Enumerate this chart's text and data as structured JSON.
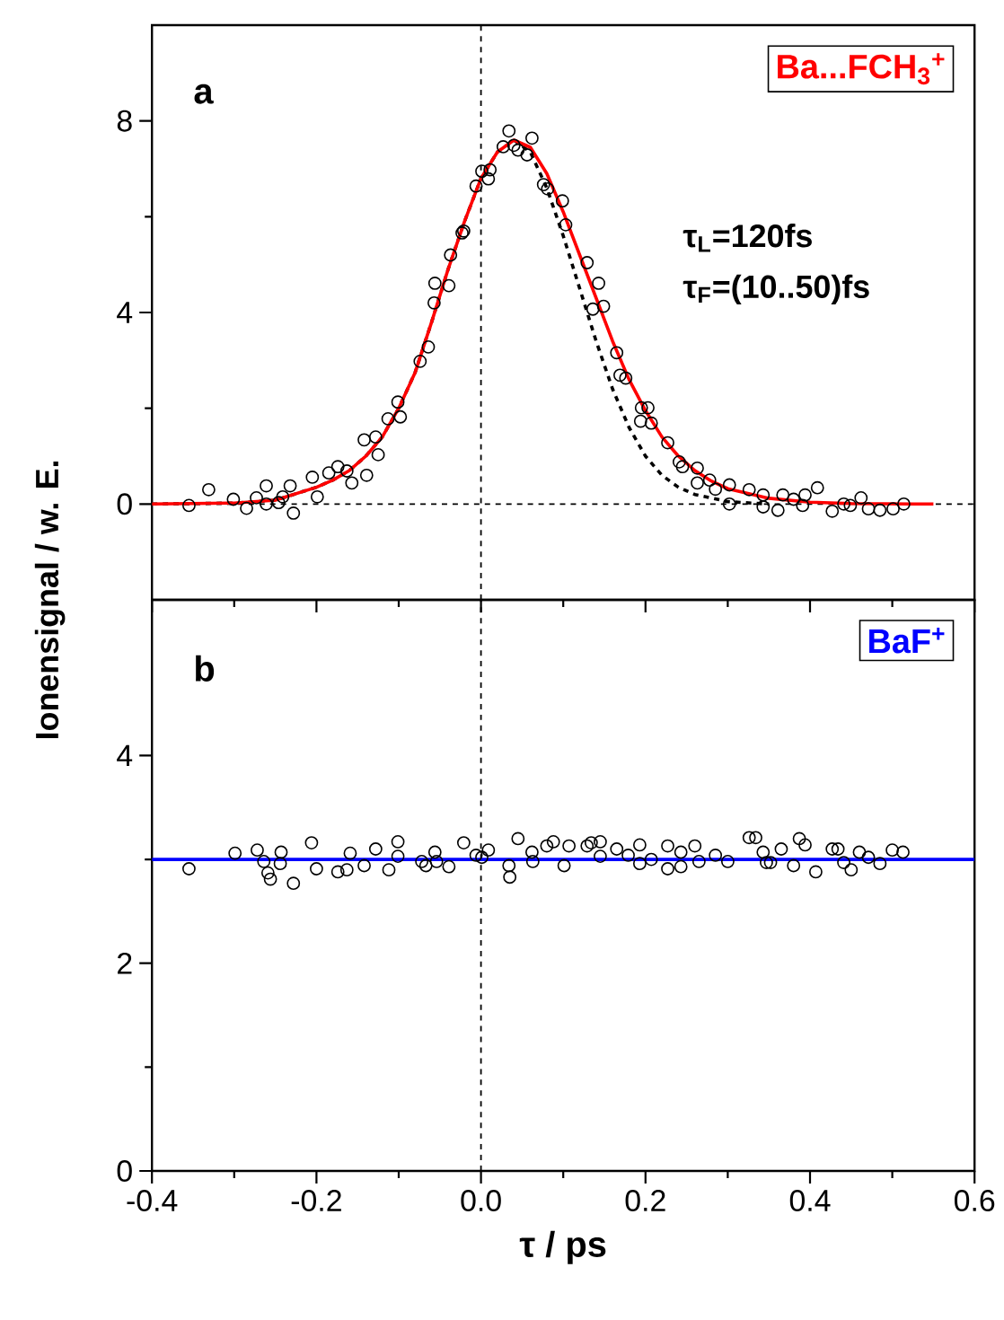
{
  "chart_data": [
    {
      "type": "scatter",
      "xlim": [
        -0.4,
        0.6
      ],
      "xticks": [
        -0.4,
        -0.2,
        0,
        0.2,
        0.4,
        0.6
      ],
      "ylim": [
        -2,
        10
      ],
      "yticks": [
        0,
        4,
        8
      ],
      "tick_labels": "y",
      "annotations": [
        "**a**",
        "**τ$_{L}$=120fs**",
        "**τ$_{F}$=(10..50)fs**"
      ],
      "ref_lines": [
        {
          "axis": "x",
          "value": 0,
          "color": "#000000",
          "line_style": "dashed"
        },
        {
          "axis": "y",
          "value": 0,
          "color": "#000000",
          "line_style": "dashed"
        }
      ],
      "series": [
        {
          "marker": "circle",
          "color": "#000000",
          "x": [
            -0.355,
            -0.331,
            -0.301,
            -0.285,
            -0.273,
            -0.261,
            -0.261,
            -0.246,
            -0.241,
            -0.232,
            -0.228,
            -0.205,
            -0.199,
            -0.185,
            -0.174,
            -0.163,
            -0.157,
            -0.142,
            -0.139,
            -0.128,
            -0.125,
            -0.113,
            -0.101,
            -0.098,
            -0.074,
            -0.064,
            -0.057,
            -0.056,
            -0.039,
            -0.037,
            -0.023,
            -0.021,
            -0.006,
            0.001,
            0.009,
            0.011,
            0.027,
            0.034,
            0.04,
            0.045,
            0.056,
            0.062,
            0.076,
            0.081,
            0.099,
            0.103,
            0.129,
            0.136,
            0.143,
            0.149,
            0.165,
            0.169,
            0.176,
            0.194,
            0.195,
            0.203,
            0.207,
            0.227,
            0.241,
            0.245,
            0.263,
            0.263,
            0.278,
            0.285,
            0.302,
            0.302,
            0.326,
            0.343,
            0.343,
            0.361,
            0.367,
            0.38,
            0.391,
            0.394,
            0.409,
            0.427,
            0.441,
            0.449,
            0.462,
            0.471,
            0.485,
            0.501,
            0.514
          ],
          "values": [
            -0.03,
            0.3,
            0.1,
            -0.09,
            0.13,
            0.38,
            0.0,
            0.03,
            0.15,
            0.38,
            -0.19,
            0.56,
            0.15,
            0.65,
            0.78,
            0.69,
            0.44,
            1.34,
            0.6,
            1.4,
            1.03,
            1.78,
            2.13,
            1.82,
            2.98,
            3.28,
            4.2,
            4.61,
            4.56,
            5.2,
            5.66,
            5.7,
            6.64,
            6.95,
            6.79,
            6.98,
            7.46,
            7.79,
            7.49,
            7.39,
            7.29,
            7.64,
            6.67,
            6.58,
            6.33,
            5.83,
            5.04,
            4.07,
            4.61,
            4.13,
            3.16,
            2.69,
            2.63,
            1.73,
            2.01,
            2.01,
            1.69,
            1.28,
            0.88,
            0.78,
            0.75,
            0.44,
            0.5,
            0.31,
            0.4,
            0.0,
            0.3,
            0.19,
            -0.06,
            -0.13,
            0.19,
            0.1,
            -0.03,
            0.19,
            0.34,
            -0.15,
            0.0,
            -0.03,
            0.13,
            -0.1,
            -0.13,
            -0.1,
            0.0
          ]
        },
        {
          "type": "line",
          "line_style": "dashed",
          "color": "#000000",
          "x": [
            -0.4,
            -0.3,
            -0.25,
            -0.2,
            -0.18,
            -0.16,
            -0.14,
            -0.12,
            -0.1,
            -0.08,
            -0.06,
            -0.04,
            -0.02,
            0.0,
            0.02,
            0.04,
            0.06,
            0.08,
            0.1,
            0.12,
            0.14,
            0.16,
            0.18,
            0.2,
            0.22,
            0.24,
            0.26,
            0.3,
            0.35
          ],
          "values": [
            0,
            0.02,
            0.08,
            0.35,
            0.5,
            0.7,
            1.0,
            1.4,
            2.0,
            2.75,
            3.8,
            4.9,
            5.9,
            6.8,
            7.35,
            7.6,
            7.35,
            6.6,
            5.6,
            4.5,
            3.4,
            2.4,
            1.6,
            1.0,
            0.6,
            0.35,
            0.2,
            0.05,
            0
          ]
        },
        {
          "type": "line",
          "name": "Ba...FCH$_{3}$$^{+}$",
          "color": "#ff0000",
          "x": [
            -0.4,
            -0.3,
            -0.25,
            -0.2,
            -0.18,
            -0.16,
            -0.14,
            -0.12,
            -0.1,
            -0.08,
            -0.06,
            -0.04,
            -0.02,
            0.0,
            0.02,
            0.04,
            0.06,
            0.08,
            0.1,
            0.12,
            0.14,
            0.16,
            0.18,
            0.2,
            0.22,
            0.24,
            0.26,
            0.28,
            0.3,
            0.35,
            0.4,
            0.45,
            0.55
          ],
          "values": [
            0,
            0.02,
            0.08,
            0.35,
            0.5,
            0.7,
            1.0,
            1.4,
            2.0,
            2.75,
            3.8,
            4.9,
            5.9,
            6.8,
            7.35,
            7.6,
            7.45,
            6.9,
            6.1,
            5.2,
            4.3,
            3.4,
            2.6,
            1.95,
            1.4,
            1.0,
            0.7,
            0.48,
            0.32,
            0.12,
            0.04,
            0.01,
            0
          ]
        }
      ]
    },
    {
      "type": "scatter",
      "xlim": [
        -0.4,
        0.6
      ],
      "xticks": [
        -0.4,
        -0.2,
        {
          "value": 0,
          "label": "0.0"
        },
        0.2,
        0.4,
        0.6
      ],
      "ylim": [
        0,
        5.5
      ],
      "yticks": [
        0,
        2,
        4
      ],
      "xlabel": "τ / ps",
      "ylabel": "Ionensignal / w. E.",
      "annotations": [
        "**b**"
      ],
      "ref_lines": [
        {
          "axis": "x",
          "value": 0,
          "color": "#000000",
          "line_style": "dashed"
        }
      ],
      "series": [
        {
          "marker": "circle",
          "color": "#000000",
          "x": [
            -0.355,
            -0.299,
            -0.272,
            -0.264,
            -0.259,
            -0.256,
            -0.243,
            -0.244,
            -0.228,
            -0.206,
            -0.2,
            -0.174,
            -0.163,
            -0.159,
            -0.142,
            -0.128,
            -0.112,
            -0.101,
            -0.101,
            -0.072,
            -0.067,
            -0.056,
            -0.054,
            -0.039,
            -0.021,
            -0.006,
            0.001,
            0.009,
            0.034,
            0.035,
            0.045,
            0.063,
            0.062,
            0.08,
            0.088,
            0.101,
            0.107,
            0.129,
            0.134,
            0.145,
            0.145,
            0.165,
            0.179,
            0.193,
            0.193,
            0.207,
            0.227,
            0.227,
            0.243,
            0.243,
            0.26,
            0.265,
            0.285,
            0.3,
            0.326,
            0.334,
            0.343,
            0.347,
            0.352,
            0.365,
            0.38,
            0.387,
            0.394,
            0.407,
            0.427,
            0.434,
            0.441,
            0.45,
            0.46,
            0.471,
            0.485,
            0.5,
            0.513
          ],
          "values": [
            2.91,
            3.06,
            3.09,
            2.98,
            2.87,
            2.81,
            3.07,
            2.96,
            2.77,
            3.16,
            2.91,
            2.88,
            2.9,
            3.06,
            2.94,
            3.1,
            2.9,
            3.17,
            3.03,
            2.98,
            2.94,
            3.07,
            2.98,
            2.93,
            3.16,
            3.04,
            3.02,
            3.09,
            2.94,
            2.83,
            3.2,
            2.98,
            3.07,
            3.13,
            3.17,
            2.94,
            3.13,
            3.13,
            3.16,
            3.17,
            3.03,
            3.1,
            3.04,
            3.14,
            2.96,
            3.0,
            3.13,
            2.91,
            3.07,
            2.93,
            3.13,
            2.98,
            3.04,
            2.98,
            3.21,
            3.21,
            3.07,
            2.97,
            2.97,
            3.1,
            2.94,
            3.2,
            3.14,
            2.88,
            3.1,
            3.1,
            2.97,
            2.9,
            3.07,
            3.02,
            2.96,
            3.09,
            3.07
          ]
        },
        {
          "type": "line",
          "name": "BaF$^{+}$",
          "color": "#0000ff",
          "x": [
            -0.4,
            0.6
          ],
          "values": [
            3.0,
            3.0
          ]
        }
      ]
    }
  ]
}
